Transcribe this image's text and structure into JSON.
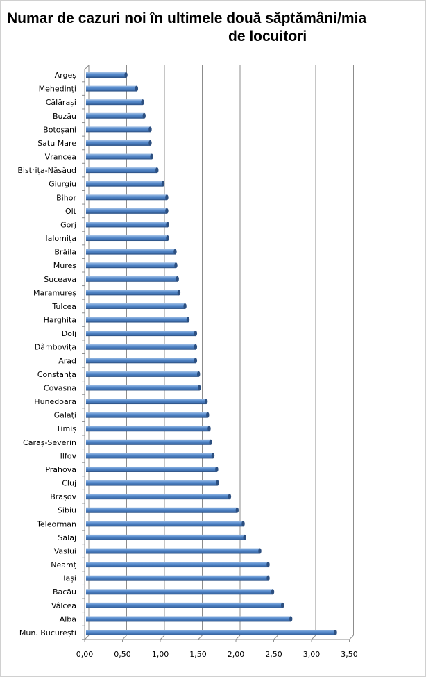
{
  "chart_data": {
    "type": "bar",
    "orientation": "horizontal",
    "style": "3d-cylinder",
    "title_line1": "Numar de cazuri noi în ultimele două săptămâni/mia",
    "title_line2": "de locuitori",
    "xlabel": "",
    "ylabel": "",
    "xlim": [
      0,
      3.5
    ],
    "xticks": [
      "0,00",
      "0,50",
      "1,00",
      "1,50",
      "2,00",
      "2,50",
      "3,00",
      "3,50"
    ],
    "grid": true,
    "legend": "none",
    "bar_color": "#4f81bd",
    "categories": [
      "Argeș",
      "Mehedinți",
      "Călărași",
      "Buzău",
      "Botoșani",
      "Satu Mare",
      "Vrancea",
      "Bistrița-Năsăud",
      "Giurgiu",
      "Bihor",
      "Olt",
      "Gorj",
      "Ialomița",
      "Brăila",
      "Mureș",
      "Suceava",
      "Maramureș",
      "Tulcea",
      "Harghita",
      "Dolj",
      "Dâmbovița",
      "Arad",
      "Constanța",
      "Covasna",
      "Hunedoara",
      "Galați",
      "Timiș",
      "Caraș-Severin",
      "Ilfov",
      "Prahova",
      "Cluj",
      "Brașov",
      "Sibiu",
      "Teleorman",
      "Sălaj",
      "Vaslui",
      "Neamț",
      "Iași",
      "Bacău",
      "Vâlcea",
      "Alba",
      "Mun. București"
    ],
    "values": [
      0.51,
      0.65,
      0.73,
      0.75,
      0.83,
      0.83,
      0.85,
      0.92,
      1.0,
      1.05,
      1.05,
      1.06,
      1.06,
      1.16,
      1.17,
      1.19,
      1.21,
      1.29,
      1.33,
      1.43,
      1.43,
      1.43,
      1.47,
      1.48,
      1.57,
      1.59,
      1.61,
      1.63,
      1.66,
      1.71,
      1.72,
      1.88,
      1.98,
      2.06,
      2.08,
      2.28,
      2.39,
      2.39,
      2.45,
      2.58,
      2.69,
      3.28
    ]
  }
}
